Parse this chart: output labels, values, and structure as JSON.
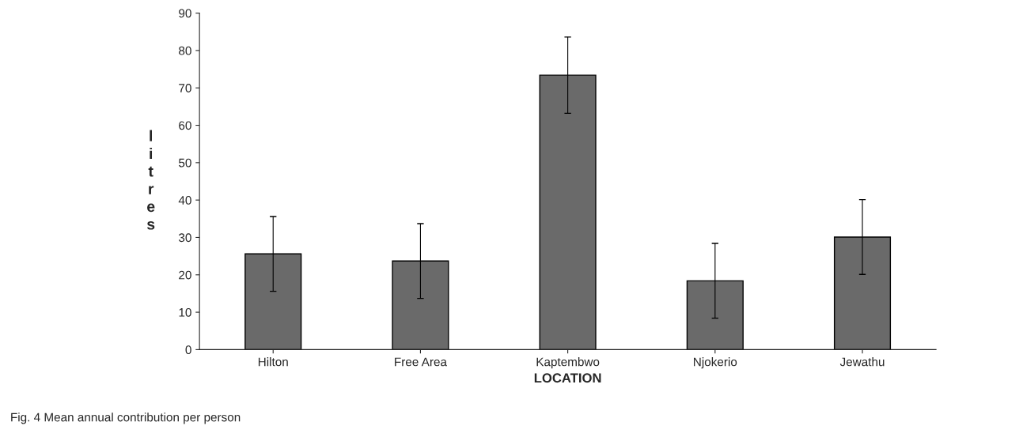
{
  "chart_data": {
    "type": "bar",
    "xlabel": "LOCATION",
    "ylabel": "litres",
    "categories": [
      "Hilton",
      "Free Area",
      "Kaptembwo",
      "Njokerio",
      "Jewathu"
    ],
    "values": [
      25.6,
      23.7,
      73.4,
      18.4,
      30.1
    ],
    "errors": [
      10,
      10,
      10.2,
      10,
      10
    ],
    "color": "#6a6a6a",
    "ylim": [
      0,
      90
    ],
    "yticks": [
      0,
      10,
      20,
      30,
      40,
      50,
      60,
      70,
      80,
      90
    ],
    "grid": false,
    "legend": false,
    "annotations": [
      "Fig. 4 Mean annual contribution per person"
    ]
  }
}
